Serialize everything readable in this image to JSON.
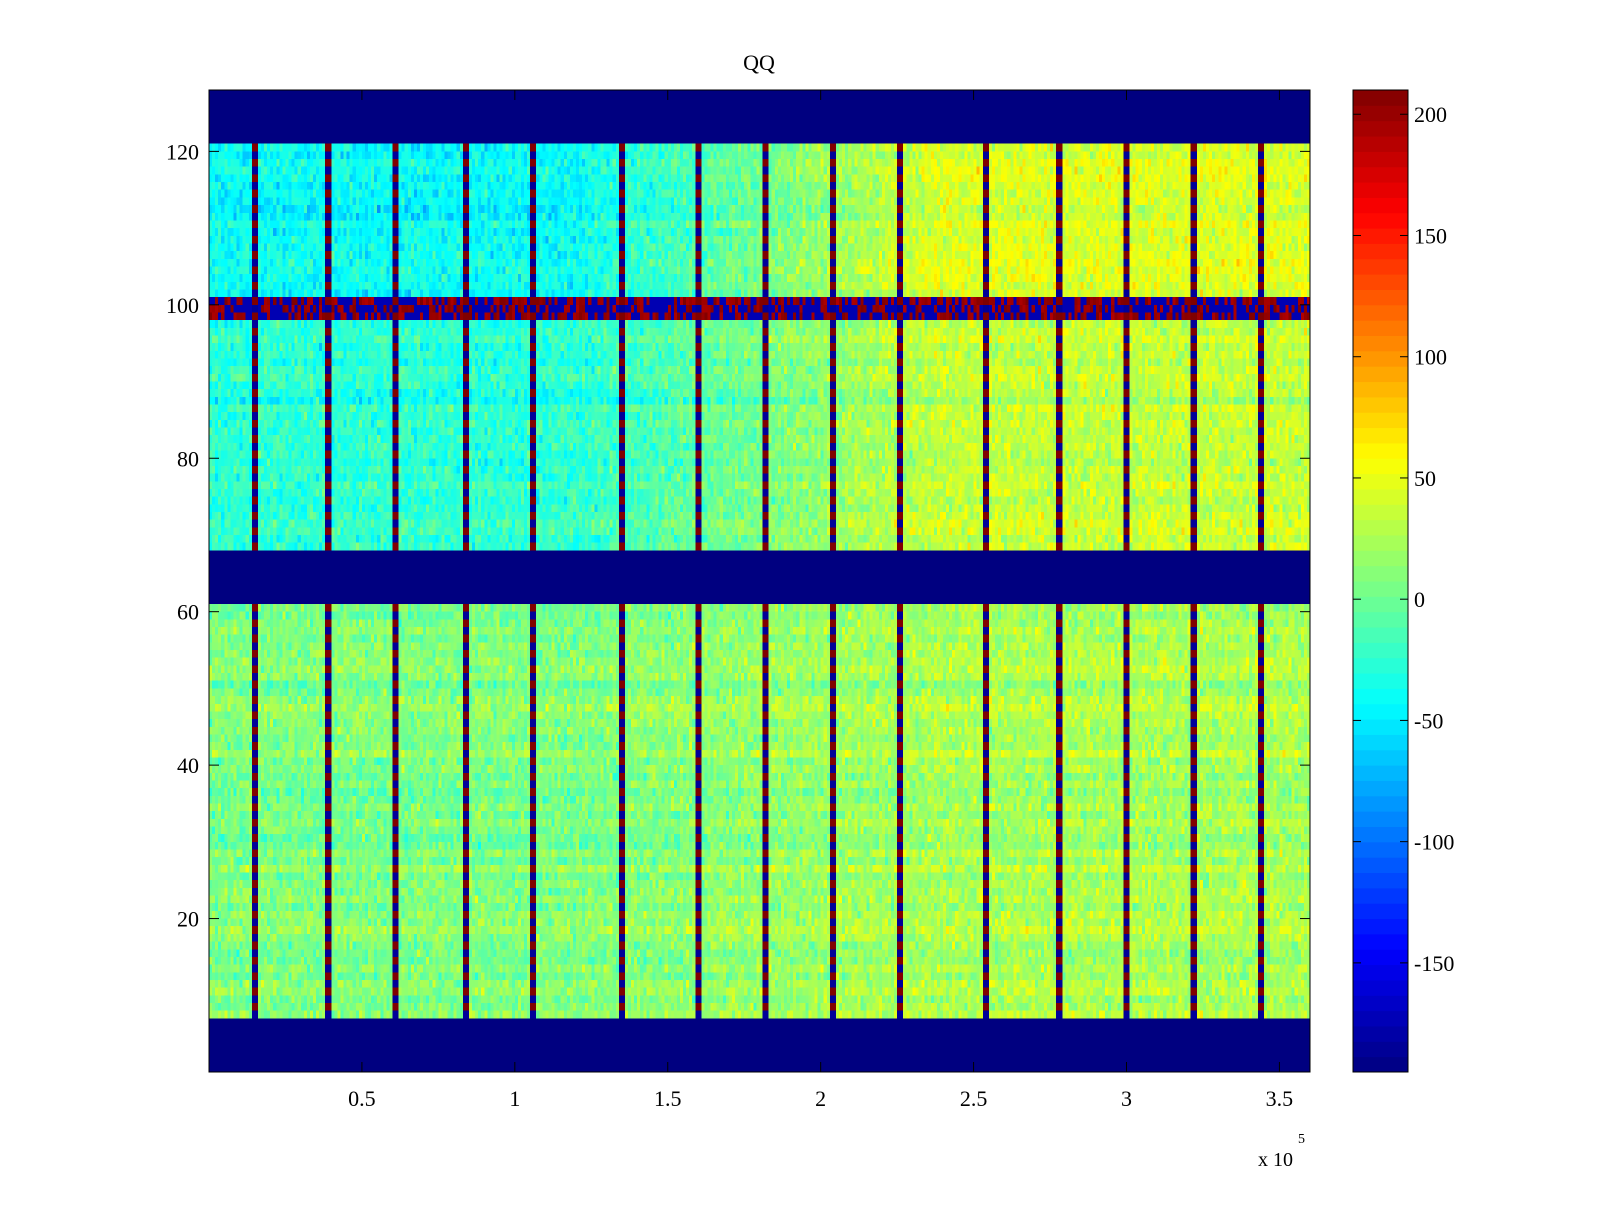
{
  "chart_data": {
    "type": "heatmap",
    "title": "QQ",
    "xlabel": "",
    "ylabel": "",
    "x_exponent_label": "x 10",
    "x_exponent_power": "5",
    "xlim": [
      0,
      3.6
    ],
    "x_scale_factor": 100000,
    "ylim": [
      0,
      128
    ],
    "x_ticks": [
      0.5,
      1,
      1.5,
      2,
      2.5,
      3,
      3.5
    ],
    "x_tick_labels": [
      "0.5",
      "1",
      "1.5",
      "2",
      "2.5",
      "3",
      "3.5"
    ],
    "y_ticks": [
      20,
      40,
      60,
      80,
      100,
      120
    ],
    "y_tick_labels": [
      "20",
      "40",
      "60",
      "80",
      "100",
      "120"
    ],
    "colorbar": {
      "colormap": "jet",
      "range": [
        -195,
        210
      ],
      "ticks": [
        200,
        150,
        100,
        50,
        0,
        -50,
        -100,
        -150
      ],
      "tick_labels": [
        "200",
        "150",
        "100",
        "50",
        "0",
        "-50",
        "-100",
        "-150"
      ]
    },
    "masked_row_bands": [
      {
        "y_range": [
          0,
          7
        ],
        "value": -195
      },
      {
        "y_range": [
          61,
          68
        ],
        "value": -195
      },
      {
        "y_range": [
          121,
          128
        ],
        "value": -195
      }
    ],
    "vertical_stripe_positions_x1e5": [
      0.15,
      0.39,
      0.61,
      0.84,
      1.06,
      1.35,
      1.6,
      1.82,
      2.04,
      2.26,
      2.54,
      2.78,
      3.0,
      3.22,
      3.44
    ],
    "noisy_row_band": {
      "y_range": [
        98,
        101
      ],
      "description": "alternating high/low values"
    },
    "approx_mean_field": [
      {
        "region": "rows 7-61, x 0-2",
        "mean_value": 10
      },
      {
        "region": "rows 7-61, x 2-3.6",
        "mean_value": 25
      },
      {
        "region": "rows 68-98, x 0-1.5",
        "mean_value": -25
      },
      {
        "region": "rows 68-98, x 2-3.6",
        "mean_value": 35
      },
      {
        "region": "rows 101-121, x 0-1.5",
        "mean_value": -40
      },
      {
        "region": "rows 101-121, x 2-3.6",
        "mean_value": 45
      }
    ]
  }
}
